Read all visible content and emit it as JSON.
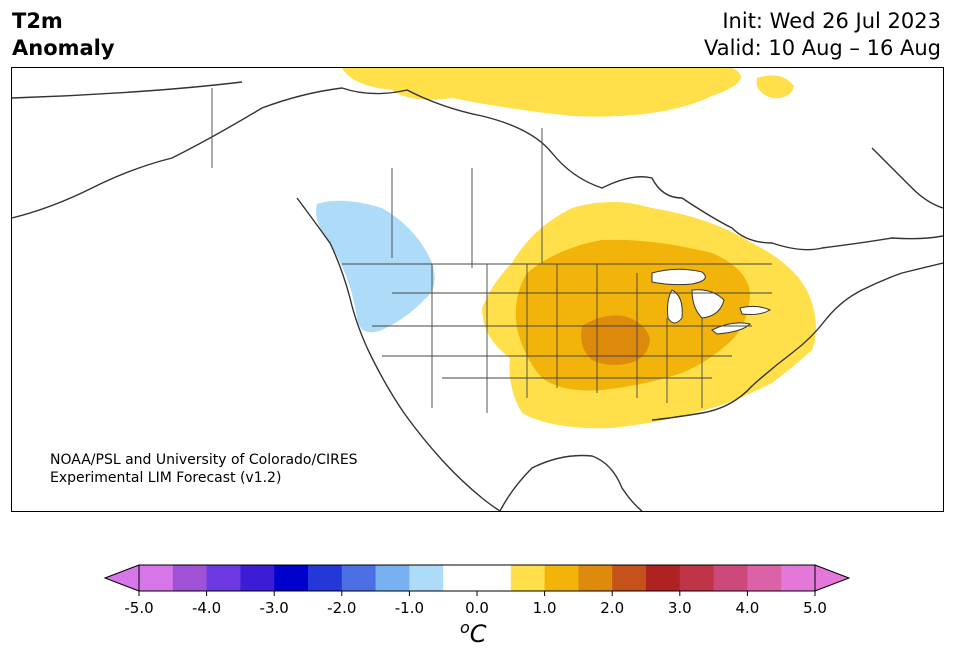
{
  "header": {
    "variable_line1": "T2m",
    "variable_line2": "Anomaly",
    "init": "Init: Wed 26 Jul 2023",
    "valid": "Valid: 10 Aug – 16 Aug"
  },
  "map": {
    "region": "North America",
    "credit_line1": "NOAA/PSL and University of Colorado/CIRES",
    "credit_line2": "Experimental LIM Forecast (v1.2)",
    "anomaly_areas": [
      {
        "area": "Northern Canada / Arctic islands",
        "class": "warm",
        "level": "0.5 to 1.0"
      },
      {
        "area": "Pacific Northwest",
        "class": "cool",
        "level": "-1.0 to -0.5"
      },
      {
        "area": "Central and Eastern US",
        "class": "warm",
        "level": "0.5 to 1.0"
      },
      {
        "area": "Midwest / Plains",
        "class": "warm",
        "level": "1.0 to 1.5"
      },
      {
        "area": "Iowa / Missouri",
        "class": "warm",
        "level": "1.5 to 2.0"
      }
    ]
  },
  "colorbar": {
    "unit_base": "C",
    "unit_sup": "o",
    "tick_labels": [
      "-5.0",
      "-4.0",
      "-3.0",
      "-2.0",
      "-1.0",
      "0.0",
      "1.0",
      "2.0",
      "3.0",
      "4.0",
      "5.0"
    ],
    "colors": [
      "#d676e8",
      "#a052d6",
      "#6c3ae0",
      "#3c1cd4",
      "#0000cc",
      "#2438d8",
      "#4c70e4",
      "#78b0f2",
      "#aedcf8",
      "#ffffff",
      "#ffffff",
      "#ffe04a",
      "#f2b40a",
      "#de8a0c",
      "#c4521a",
      "#ae2222",
      "#c03448",
      "#cc4a7a",
      "#dc62a8",
      "#e478d8"
    ],
    "extend_low_color": "#d676e8",
    "extend_high_color": "#e478d8"
  }
}
